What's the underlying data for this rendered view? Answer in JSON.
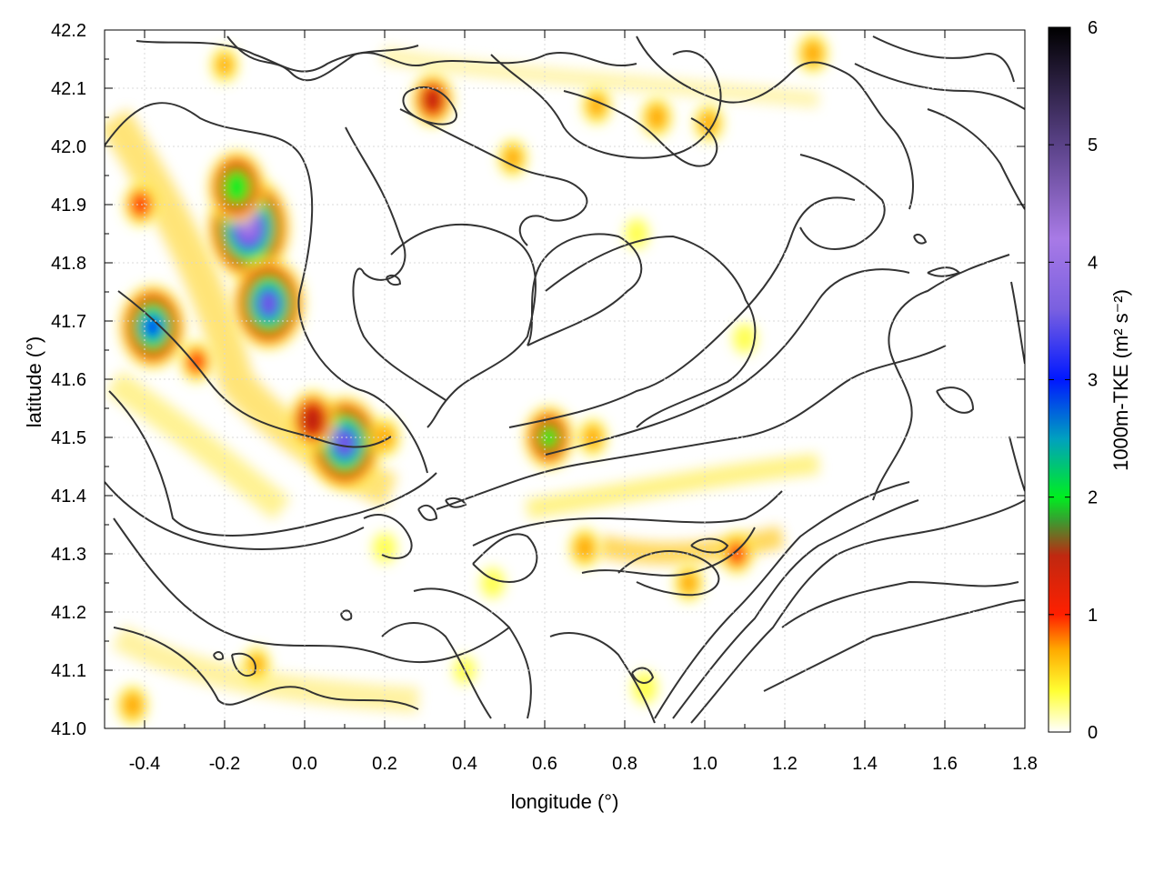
{
  "chart_data": {
    "type": "heatmap",
    "xlabel": "longitude (°)",
    "ylabel": "latitude (°)",
    "xlim": [
      -0.5,
      1.8
    ],
    "ylim": [
      41.0,
      42.2
    ],
    "x_ticks": [
      "-0.4",
      "-0.2",
      "0.0",
      "0.2",
      "0.4",
      "0.6",
      "0.8",
      "1.0",
      "1.2",
      "1.4",
      "1.6",
      "1.8"
    ],
    "x_tick_values": [
      -0.4,
      -0.2,
      0.0,
      0.2,
      0.4,
      0.6,
      0.8,
      1.0,
      1.2,
      1.4,
      1.6,
      1.8
    ],
    "y_ticks": [
      "41.0",
      "41.1",
      "41.2",
      "41.3",
      "41.4",
      "41.5",
      "41.6",
      "41.7",
      "41.8",
      "41.9",
      "42.0",
      "42.1",
      "42.2"
    ],
    "y_tick_values": [
      41.0,
      41.1,
      41.2,
      41.3,
      41.4,
      41.5,
      41.6,
      41.7,
      41.8,
      41.9,
      42.0,
      42.1,
      42.2
    ],
    "grid": true,
    "colorbar": {
      "label": "1000m-TKE (m² s⁻²)",
      "range": [
        0,
        6
      ],
      "ticks": [
        "0",
        "1",
        "2",
        "3",
        "4",
        "5",
        "6"
      ],
      "tick_values": [
        0,
        1,
        2,
        3,
        4,
        5,
        6
      ],
      "stops": [
        {
          "v": 0.0,
          "color": "#ffffff"
        },
        {
          "v": 0.35,
          "color": "#ffff33"
        },
        {
          "v": 0.7,
          "color": "#ffaa00"
        },
        {
          "v": 1.0,
          "color": "#ff2000"
        },
        {
          "v": 1.5,
          "color": "#c02810"
        },
        {
          "v": 1.8,
          "color": "#3a9c30"
        },
        {
          "v": 2.0,
          "color": "#00ee20"
        },
        {
          "v": 2.5,
          "color": "#00a0c0"
        },
        {
          "v": 3.0,
          "color": "#0018ff"
        },
        {
          "v": 3.6,
          "color": "#7a60e0"
        },
        {
          "v": 4.2,
          "color": "#a87ae6"
        },
        {
          "v": 5.0,
          "color": "#5a4288"
        },
        {
          "v": 6.0,
          "color": "#000000"
        }
      ]
    },
    "hotspots": [
      {
        "lon": -0.14,
        "lat": 41.86,
        "tke": 4.3
      },
      {
        "lon": -0.09,
        "lat": 41.73,
        "tke": 3.6
      },
      {
        "lon": -0.17,
        "lat": 41.93,
        "tke": 2.6
      },
      {
        "lon": 0.1,
        "lat": 41.49,
        "tke": 3.7
      },
      {
        "lon": 0.02,
        "lat": 41.53,
        "tke": 1.9
      },
      {
        "lon": -0.38,
        "lat": 41.69,
        "tke": 3.2
      },
      {
        "lon": -0.41,
        "lat": 41.9,
        "tke": 1.1
      },
      {
        "lon": -0.27,
        "lat": 41.63,
        "tke": 1.0
      },
      {
        "lon": 0.32,
        "lat": 42.08,
        "tke": 1.6
      },
      {
        "lon": 0.61,
        "lat": 41.5,
        "tke": 2.1
      },
      {
        "lon": 0.72,
        "lat": 41.5,
        "tke": 0.8
      },
      {
        "lon": 1.08,
        "lat": 41.3,
        "tke": 1.0
      },
      {
        "lon": 0.96,
        "lat": 41.25,
        "tke": 0.8
      },
      {
        "lon": 0.7,
        "lat": 41.31,
        "tke": 0.9
      },
      {
        "lon": 0.88,
        "lat": 42.05,
        "tke": 0.9
      },
      {
        "lon": 0.73,
        "lat": 42.07,
        "tke": 0.8
      },
      {
        "lon": 1.01,
        "lat": 42.04,
        "tke": 0.8
      },
      {
        "lon": 1.27,
        "lat": 42.16,
        "tke": 0.9
      },
      {
        "lon": 0.52,
        "lat": 41.98,
        "tke": 0.8
      },
      {
        "lon": -0.43,
        "lat": 41.04,
        "tke": 0.9
      },
      {
        "lon": -0.12,
        "lat": 41.11,
        "tke": 0.7
      },
      {
        "lon": -0.2,
        "lat": 42.14,
        "tke": 0.7
      },
      {
        "lon": 0.2,
        "lat": 41.5,
        "tke": 0.9
      },
      {
        "lon": 0.47,
        "lat": 41.25,
        "tke": 0.5
      },
      {
        "lon": 0.2,
        "lat": 41.31,
        "tke": 0.5
      },
      {
        "lon": 0.83,
        "lat": 41.85,
        "tke": 0.5
      },
      {
        "lon": 1.1,
        "lat": 41.67,
        "tke": 0.5
      },
      {
        "lon": 0.85,
        "lat": 41.07,
        "tke": 0.6
      },
      {
        "lon": 0.4,
        "lat": 41.1,
        "tke": 0.4
      }
    ]
  }
}
